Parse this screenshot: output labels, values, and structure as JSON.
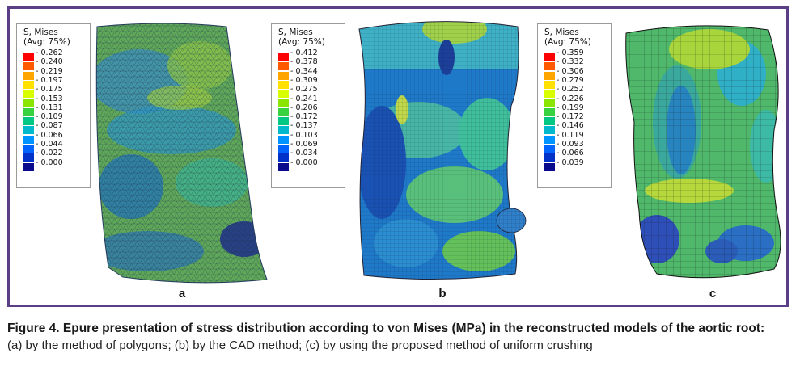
{
  "figure": {
    "panels": [
      {
        "label": "a",
        "legend_title": "S, Mises\n(Avg: 75%)",
        "ticks": [
          "+2.62e-01",
          "+2.40e-01",
          "+2.19e-01",
          "+1.97e-01",
          "+1.75e-01",
          "+1.53e-01",
          "+1.31e-01",
          "+1.09e-01",
          "+8.70e-02",
          "+6.60e-02",
          "+4.40e-02",
          "+2.20e-02",
          "+0.00e+00"
        ],
        "tick_labels": [
          "0.262",
          "0.240",
          "0.219",
          "0.197",
          "0.175",
          "0.153",
          "0.131",
          "0.109",
          "0.087",
          "0.066",
          "0.044",
          "0.022",
          "0.000"
        ]
      },
      {
        "label": "b",
        "legend_title": "S, Mises\n(Avg: 75%)",
        "tick_labels": [
          "0.412",
          "0.378",
          "0.344",
          "0.309",
          "0.275",
          "0.241",
          "0.206",
          "0.172",
          "0.137",
          "0.103",
          "0.069",
          "0.034",
          "0.000"
        ]
      },
      {
        "label": "c",
        "legend_title": "S, Mises\n(Avg: 75%)",
        "tick_labels": [
          "0.359",
          "0.332",
          "0.306",
          "0.279",
          "0.252",
          "0.226",
          "0.199",
          "0.172",
          "0.146",
          "0.119",
          "0.093",
          "0.066",
          "0.039"
        ]
      }
    ],
    "legend_colors": [
      "#ff0000",
      "#ff5a00",
      "#ffa500",
      "#ffe000",
      "#d7ff00",
      "#8ae600",
      "#38d140",
      "#00c882",
      "#00b9cc",
      "#0094ff",
      "#0064ff",
      "#0032c8",
      "#0a0a8c"
    ]
  },
  "caption": {
    "title": "Figure 4. Epure presentation of stress distribution according to von Mises (MPa) in the reconstructed models of the aortic root:",
    "text": "(a) by the method of polygons; (b) by the CAD method; (c) by using the proposed method of uniform crushing"
  }
}
